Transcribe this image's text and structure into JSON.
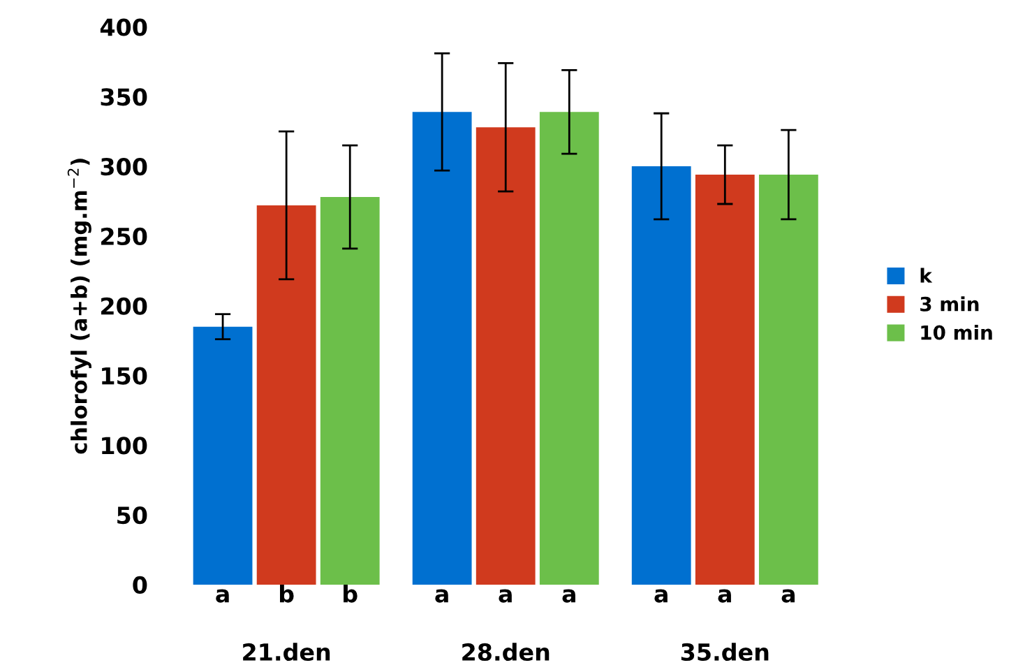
{
  "chart_data": {
    "type": "bar",
    "ylabel": "chlorofyl (a+b) (mg.m$^{−2}$)",
    "categories": [
      "21.den",
      "28.den",
      "35.den"
    ],
    "series": [
      {
        "name": "k",
        "color": "#0070d0",
        "values": [
          185,
          339,
          300
        ],
        "errors": [
          9,
          42,
          38
        ],
        "value_labels": [
          "a",
          "a",
          "a"
        ]
      },
      {
        "name": "3 min",
        "color": "#d03a1e",
        "values": [
          272,
          328,
          294
        ],
        "errors": [
          53,
          46,
          21
        ],
        "value_labels": [
          "b",
          "a",
          "a"
        ]
      },
      {
        "name": "10 min",
        "color": "#6cbf4a",
        "values": [
          278,
          339,
          294
        ],
        "errors": [
          37,
          30,
          32
        ],
        "value_labels": [
          "b",
          "a",
          "a"
        ]
      }
    ],
    "ylim": [
      0,
      400
    ],
    "yticks": [
      0,
      50,
      100,
      150,
      200,
      250,
      300,
      350,
      400
    ],
    "grid": false,
    "legend": "right"
  }
}
